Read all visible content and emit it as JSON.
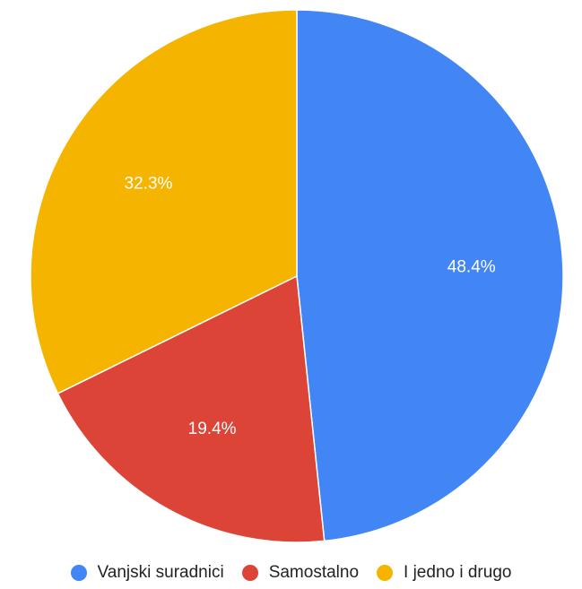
{
  "chart_data": {
    "type": "pie",
    "title": "",
    "slices": [
      {
        "label": "Vanjski suradnici",
        "value": 48.4,
        "value_label": "48.4%",
        "color": "#4285f4"
      },
      {
        "label": "Samostalno",
        "value": 19.4,
        "value_label": "19.4%",
        "color": "#db4437"
      },
      {
        "label": "I jedno i drugo",
        "value": 32.3,
        "value_label": "32.3%",
        "color": "#f4b400"
      }
    ],
    "start_angle_deg": 0,
    "direction": "clockwise",
    "legend_position": "bottom"
  }
}
